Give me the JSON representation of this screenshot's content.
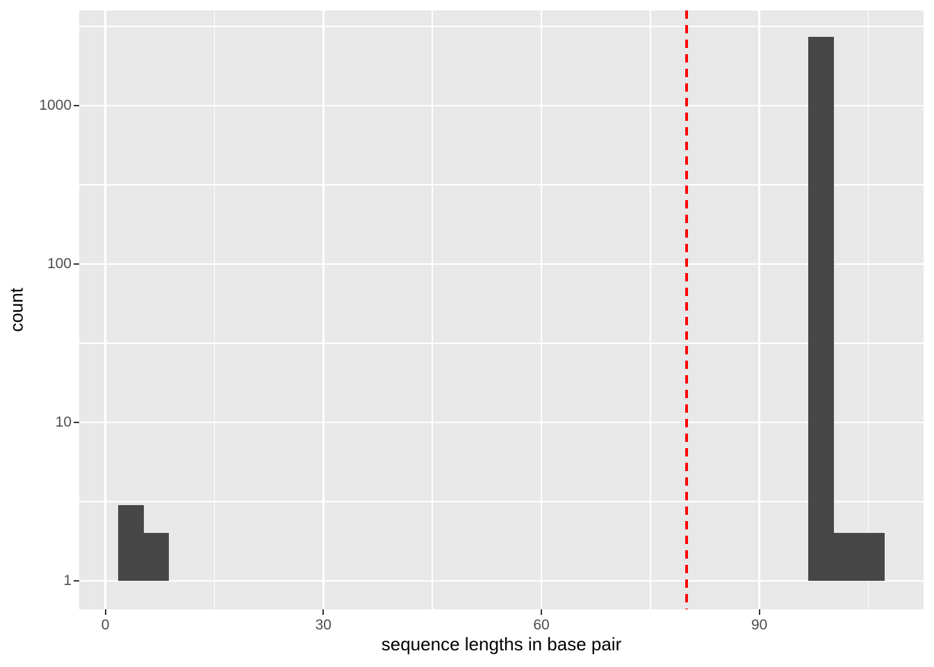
{
  "figure": {
    "background": "#FFFFFF"
  },
  "chart_data": {
    "type": "bar",
    "subtype": "histogram",
    "title": "",
    "xlabel": "sequence lengths in base pair",
    "ylabel": "count",
    "y_scale": "log10",
    "x_ticks": [
      0,
      30,
      60,
      90
    ],
    "x_minor_ticks": [
      15,
      45,
      75,
      105
    ],
    "y_ticks": [
      1,
      10,
      100,
      1000
    ],
    "y_minor_ticks": [
      3.162,
      31.62,
      316.2,
      3162
    ],
    "xlim": [
      -3.6,
      112.6
    ],
    "ylim": [
      0.66,
      3980
    ],
    "binwidth": 3.5,
    "bins": [
      {
        "x0": 1.75,
        "x1": 5.25,
        "count": 3
      },
      {
        "x0": 5.25,
        "x1": 8.75,
        "count": 2
      },
      {
        "x0": 96.75,
        "x1": 100.25,
        "count": 2700
      },
      {
        "x0": 100.25,
        "x1": 103.75,
        "count": 2
      },
      {
        "x0": 103.75,
        "x1": 107.25,
        "count": 2
      }
    ],
    "vline": {
      "x": 80,
      "color": "#FF0000",
      "linetype": "dashed"
    },
    "grid": true,
    "legend": "none",
    "colors": {
      "bar": "#474747",
      "panel_background": "#E8E8E8",
      "gridline": "#FFFFFF",
      "tick_label": "#4D4D4D",
      "axis_title": "#000000",
      "tick_mark": "#333333"
    }
  }
}
